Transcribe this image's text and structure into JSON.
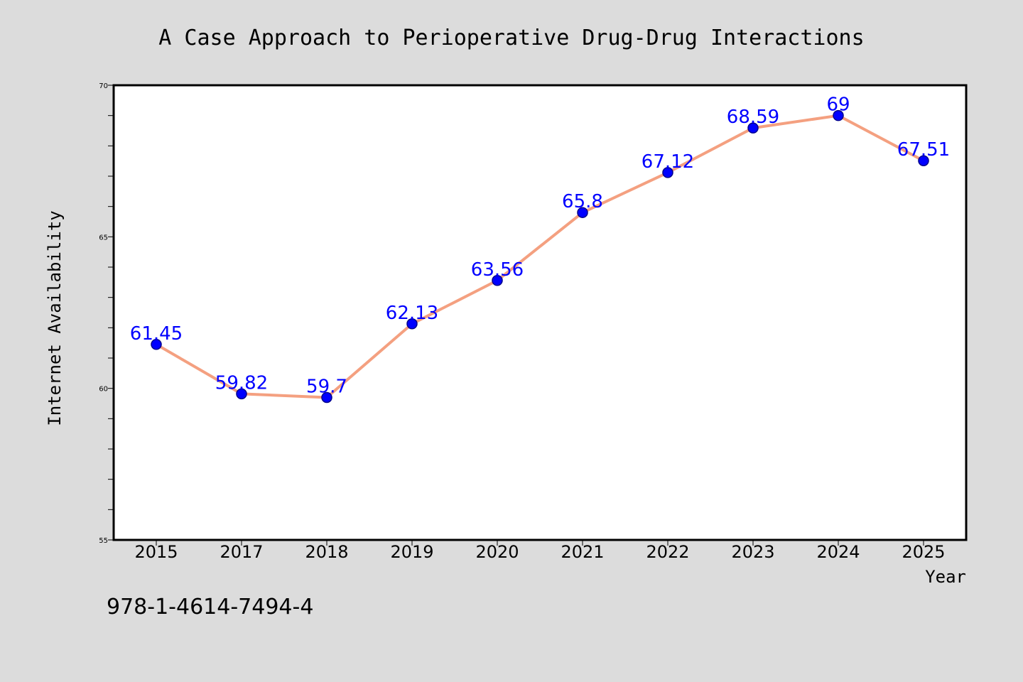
{
  "chart_data": {
    "type": "line",
    "title": "A Case Approach to Perioperative Drug-Drug Interactions",
    "xlabel": "Year",
    "ylabel": "Internet Availability",
    "categories": [
      "2015",
      "2017",
      "2018",
      "2019",
      "2020",
      "2021",
      "2022",
      "2023",
      "2024",
      "2025"
    ],
    "series": [
      {
        "values": [
          61.45,
          59.82,
          59.7,
          62.13,
          63.56,
          65.8,
          67.12,
          68.59,
          69,
          67.51
        ],
        "labels": [
          "61.45",
          "59.82",
          "59.7",
          "62.13",
          "63.56",
          "65.8",
          "67.12",
          "68.59",
          "69",
          "67.51"
        ]
      }
    ],
    "ylim": [
      55,
      70
    ],
    "y_ticks": [
      "55",
      "60",
      "65",
      "70"
    ],
    "y_minor_step": 1,
    "grid": false,
    "line_color": "#f4a080",
    "marker_color": "#0000ff",
    "label_color": "#0000ff"
  },
  "footer": {
    "text": "978-1-4614-7494-4"
  }
}
